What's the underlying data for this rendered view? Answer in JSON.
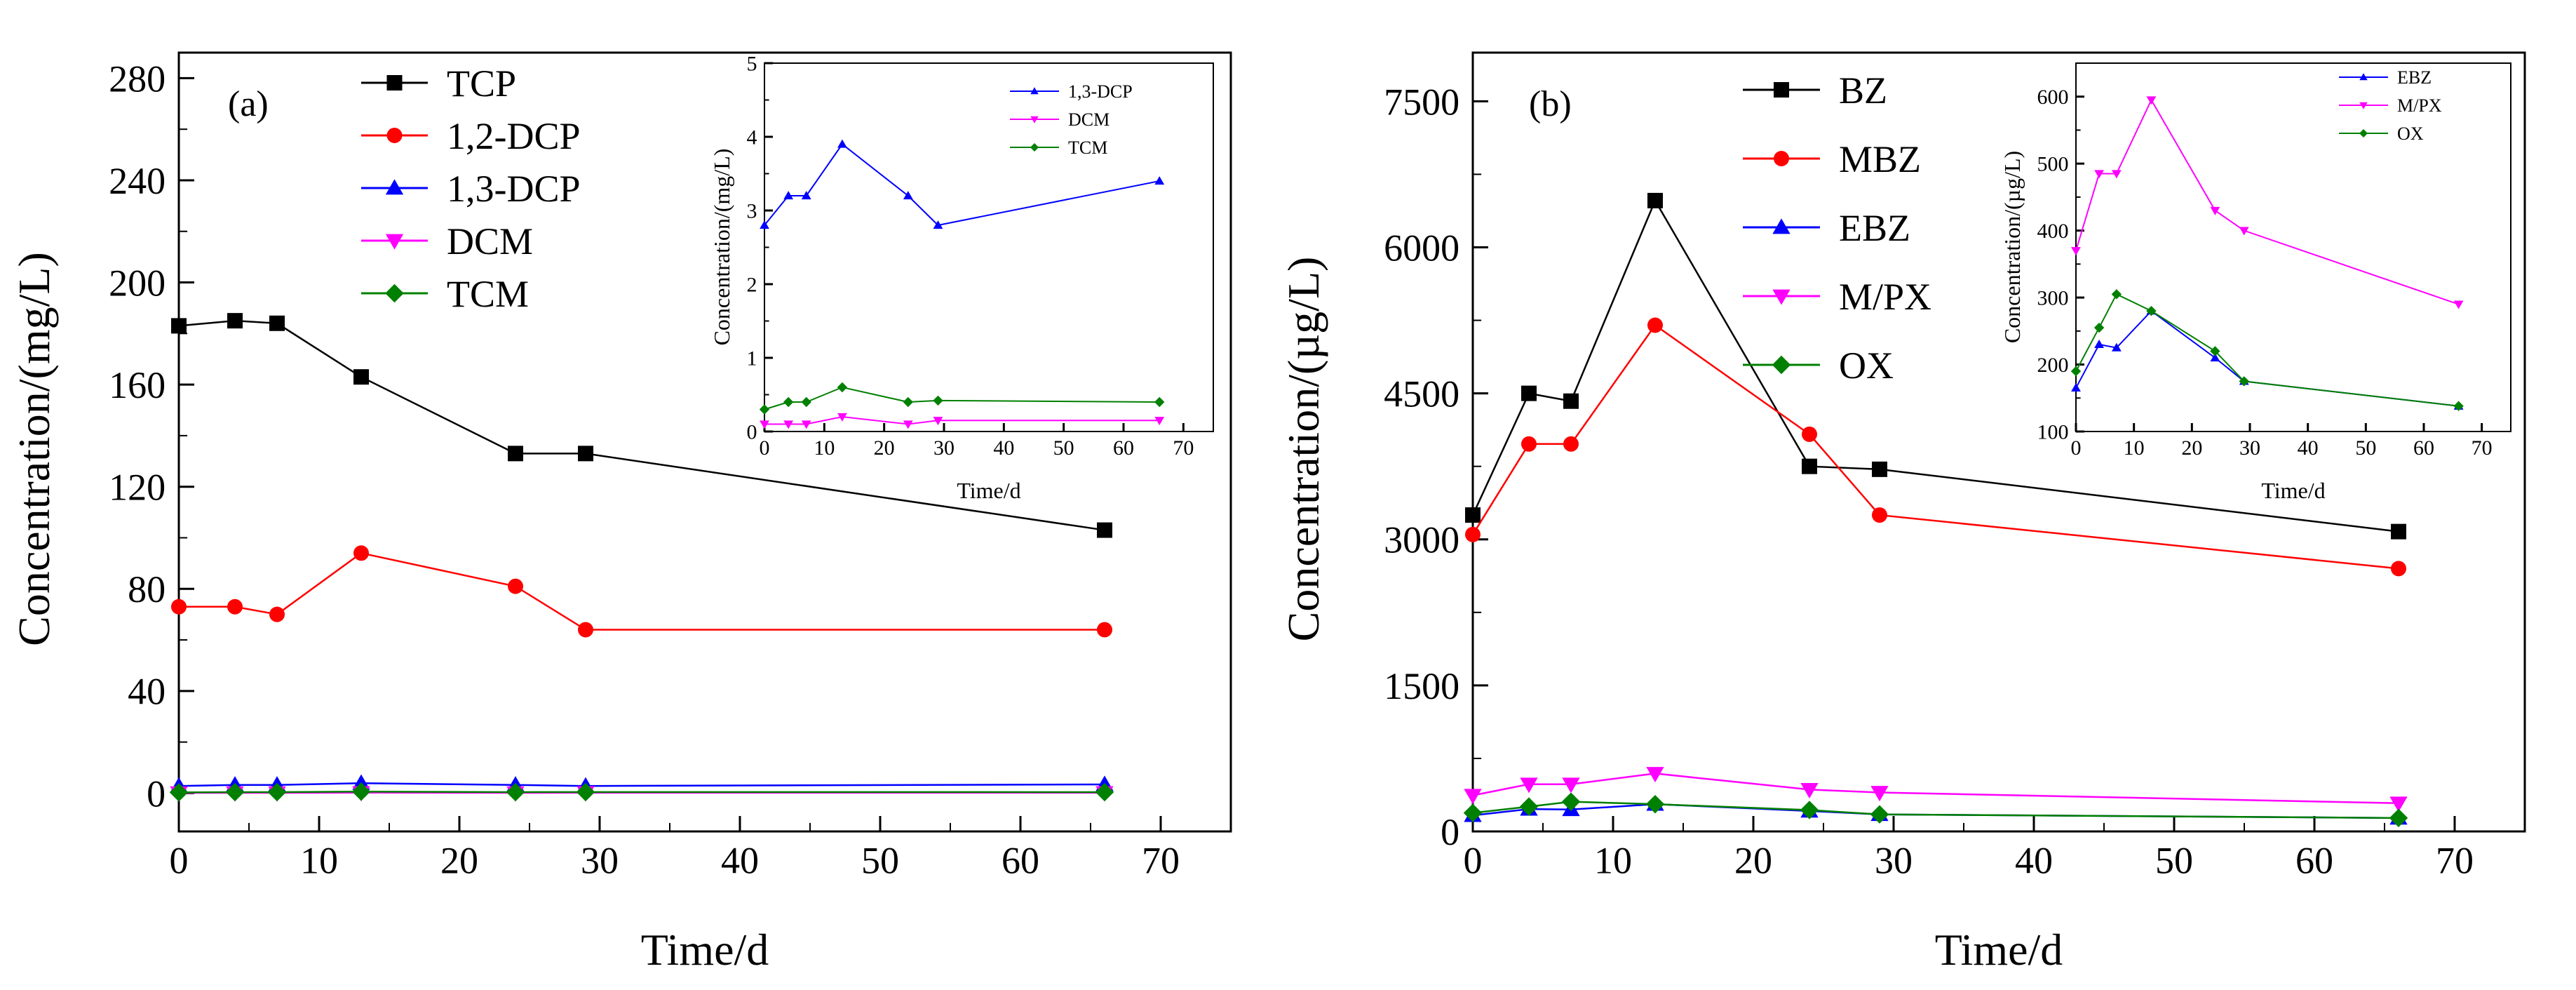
{
  "chart_data": [
    {
      "id": "a",
      "type": "line",
      "panel_label": "(a)",
      "xlabel": "Time/d",
      "ylabel": "Concentration/(mg/L)",
      "xlim": [
        0,
        75
      ],
      "ylim": [
        -15,
        290
      ],
      "xticks": [
        0,
        10,
        20,
        30,
        40,
        50,
        60,
        70
      ],
      "yticks": [
        0,
        40,
        80,
        120,
        160,
        200,
        240,
        280
      ],
      "x": [
        0,
        4,
        7,
        13,
        24,
        29,
        66
      ],
      "series": [
        {
          "name": "TCP",
          "color": "#000000",
          "marker": "square",
          "values": [
            183,
            185,
            184,
            163,
            133,
            133,
            103
          ]
        },
        {
          "name": "1,2-DCP",
          "color": "#ff0000",
          "marker": "circle",
          "values": [
            73,
            73,
            70,
            94,
            81,
            64,
            64
          ]
        },
        {
          "name": "1,3-DCP",
          "color": "#0000ff",
          "marker": "triangle-up",
          "values": [
            2.8,
            3.2,
            3.2,
            3.9,
            3.2,
            2.8,
            3.4
          ]
        },
        {
          "name": "DCM",
          "color": "#ff00ff",
          "marker": "triangle-down",
          "values": [
            0.1,
            0.1,
            0.1,
            0.2,
            0.1,
            0.15,
            0.15
          ]
        },
        {
          "name": "TCM",
          "color": "#008000",
          "marker": "diamond",
          "values": [
            0.3,
            0.4,
            0.4,
            0.6,
            0.4,
            0.42,
            0.4
          ]
        }
      ],
      "inset": {
        "xlabel": "Time/d",
        "ylabel": "Concentration/(mg/L)",
        "xlim": [
          0,
          75
        ],
        "ylim": [
          0,
          5
        ],
        "xticks": [
          0,
          10,
          20,
          30,
          40,
          50,
          60,
          70
        ],
        "yticks": [
          0,
          1,
          2,
          3,
          4,
          5
        ],
        "legend": [
          "1,3-DCP",
          "DCM",
          "TCM"
        ]
      }
    },
    {
      "id": "b",
      "type": "line",
      "panel_label": "(b)",
      "xlabel": "Time/d",
      "ylabel": "Concentration/(µg/L)",
      "xlim": [
        0,
        75
      ],
      "ylim": [
        0,
        8000
      ],
      "xticks": [
        0,
        10,
        20,
        30,
        40,
        50,
        60,
        70
      ],
      "yticks": [
        0,
        1500,
        3000,
        4500,
        6000,
        7500
      ],
      "x": [
        0,
        4,
        7,
        13,
        24,
        29,
        66
      ],
      "series": [
        {
          "name": "BZ",
          "color": "#000000",
          "marker": "square",
          "values": [
            3250,
            4500,
            4420,
            6480,
            3750,
            3720,
            3080
          ]
        },
        {
          "name": "MBZ",
          "color": "#ff0000",
          "marker": "circle",
          "values": [
            3050,
            3980,
            3980,
            5200,
            4080,
            3250,
            2700
          ]
        },
        {
          "name": "EBZ",
          "color": "#0000ff",
          "marker": "triangle-up",
          "values": [
            165,
            230,
            225,
            280,
            210,
            175,
            138
          ]
        },
        {
          "name": "M/PX",
          "color": "#ff00ff",
          "marker": "triangle-down",
          "values": [
            370,
            485,
            485,
            595,
            430,
            400,
            290
          ]
        },
        {
          "name": "OX",
          "color": "#008000",
          "marker": "diamond",
          "values": [
            190,
            255,
            305,
            280,
            220,
            175,
            138
          ]
        }
      ],
      "inset": {
        "xlabel": "Time/d",
        "ylabel": "Concentration/(µg/L)",
        "xlim": [
          0,
          75
        ],
        "ylim": [
          100,
          650
        ],
        "xticks": [
          0,
          10,
          20,
          30,
          40,
          50,
          60,
          70
        ],
        "yticks": [
          100,
          200,
          300,
          400,
          500,
          600
        ],
        "legend": [
          "EBZ",
          "M/PX",
          "OX"
        ]
      }
    }
  ]
}
